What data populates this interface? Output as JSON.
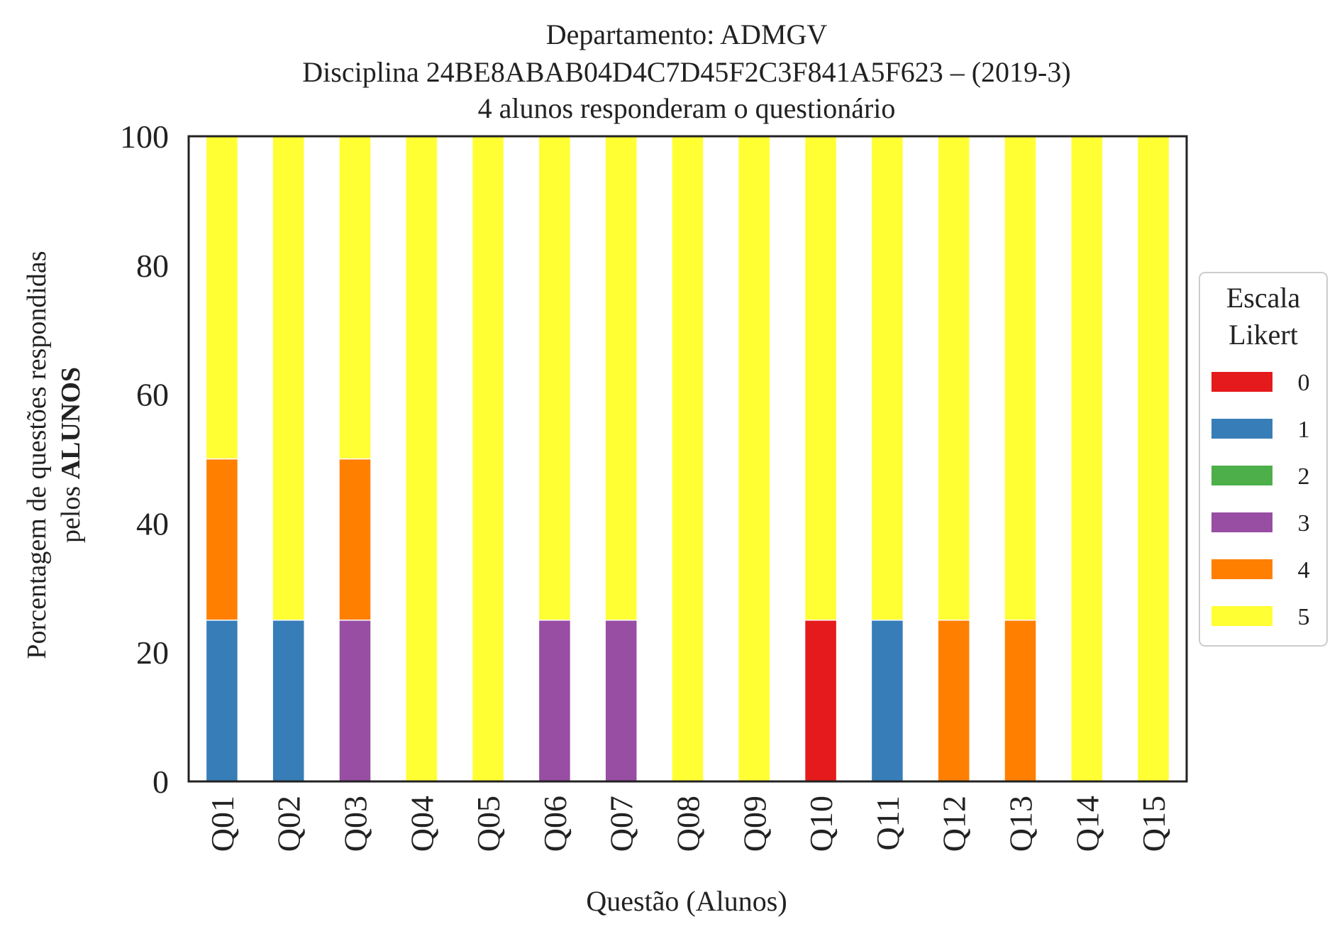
{
  "chart_data": {
    "type": "bar",
    "stacked": true,
    "title_lines": [
      "Departamento: ADMGV",
      "Disciplina 24BE8ABAB04D4C7D45F2C3F841A5F623 – (2019-3)",
      "4 alunos responderam o questionário"
    ],
    "xlabel": "Questão (Alunos)",
    "ylabel_line1": "Porcentagem de questões respondidas",
    "ylabel_line2_prefix": "pelos ",
    "ylabel_line2_bold": "ALUNOS",
    "ylim": [
      0,
      100
    ],
    "yticks": [
      "0",
      "20",
      "40",
      "60",
      "80",
      "100"
    ],
    "grid": false,
    "legend": {
      "title_lines": [
        "Escala",
        "Likert"
      ],
      "placement": "right"
    },
    "categories": [
      "Q01",
      "Q02",
      "Q03",
      "Q04",
      "Q05",
      "Q06",
      "Q07",
      "Q08",
      "Q09",
      "Q10",
      "Q11",
      "Q12",
      "Q13",
      "Q14",
      "Q15"
    ],
    "series": [
      {
        "name": "0",
        "color": "#e41a1c",
        "values": [
          0,
          0,
          0,
          0,
          0,
          0,
          0,
          0,
          0,
          25,
          0,
          0,
          0,
          0,
          0
        ]
      },
      {
        "name": "1",
        "color": "#377eb8",
        "values": [
          25,
          25,
          0,
          0,
          0,
          0,
          0,
          0,
          0,
          0,
          25,
          0,
          0,
          0,
          0
        ]
      },
      {
        "name": "2",
        "color": "#4daf4a",
        "values": [
          0,
          0,
          0,
          0,
          0,
          0,
          0,
          0,
          0,
          0,
          0,
          0,
          0,
          0,
          0
        ]
      },
      {
        "name": "3",
        "color": "#984ea3",
        "values": [
          0,
          0,
          25,
          0,
          0,
          25,
          25,
          0,
          0,
          0,
          0,
          0,
          0,
          0,
          0
        ]
      },
      {
        "name": "4",
        "color": "#ff7f00",
        "values": [
          25,
          0,
          25,
          0,
          0,
          0,
          0,
          0,
          0,
          0,
          0,
          25,
          25,
          0,
          0
        ]
      },
      {
        "name": "5",
        "color": "#ffff33",
        "values": [
          50,
          75,
          50,
          100,
          100,
          75,
          75,
          100,
          100,
          75,
          75,
          75,
          75,
          100,
          100
        ]
      }
    ]
  }
}
